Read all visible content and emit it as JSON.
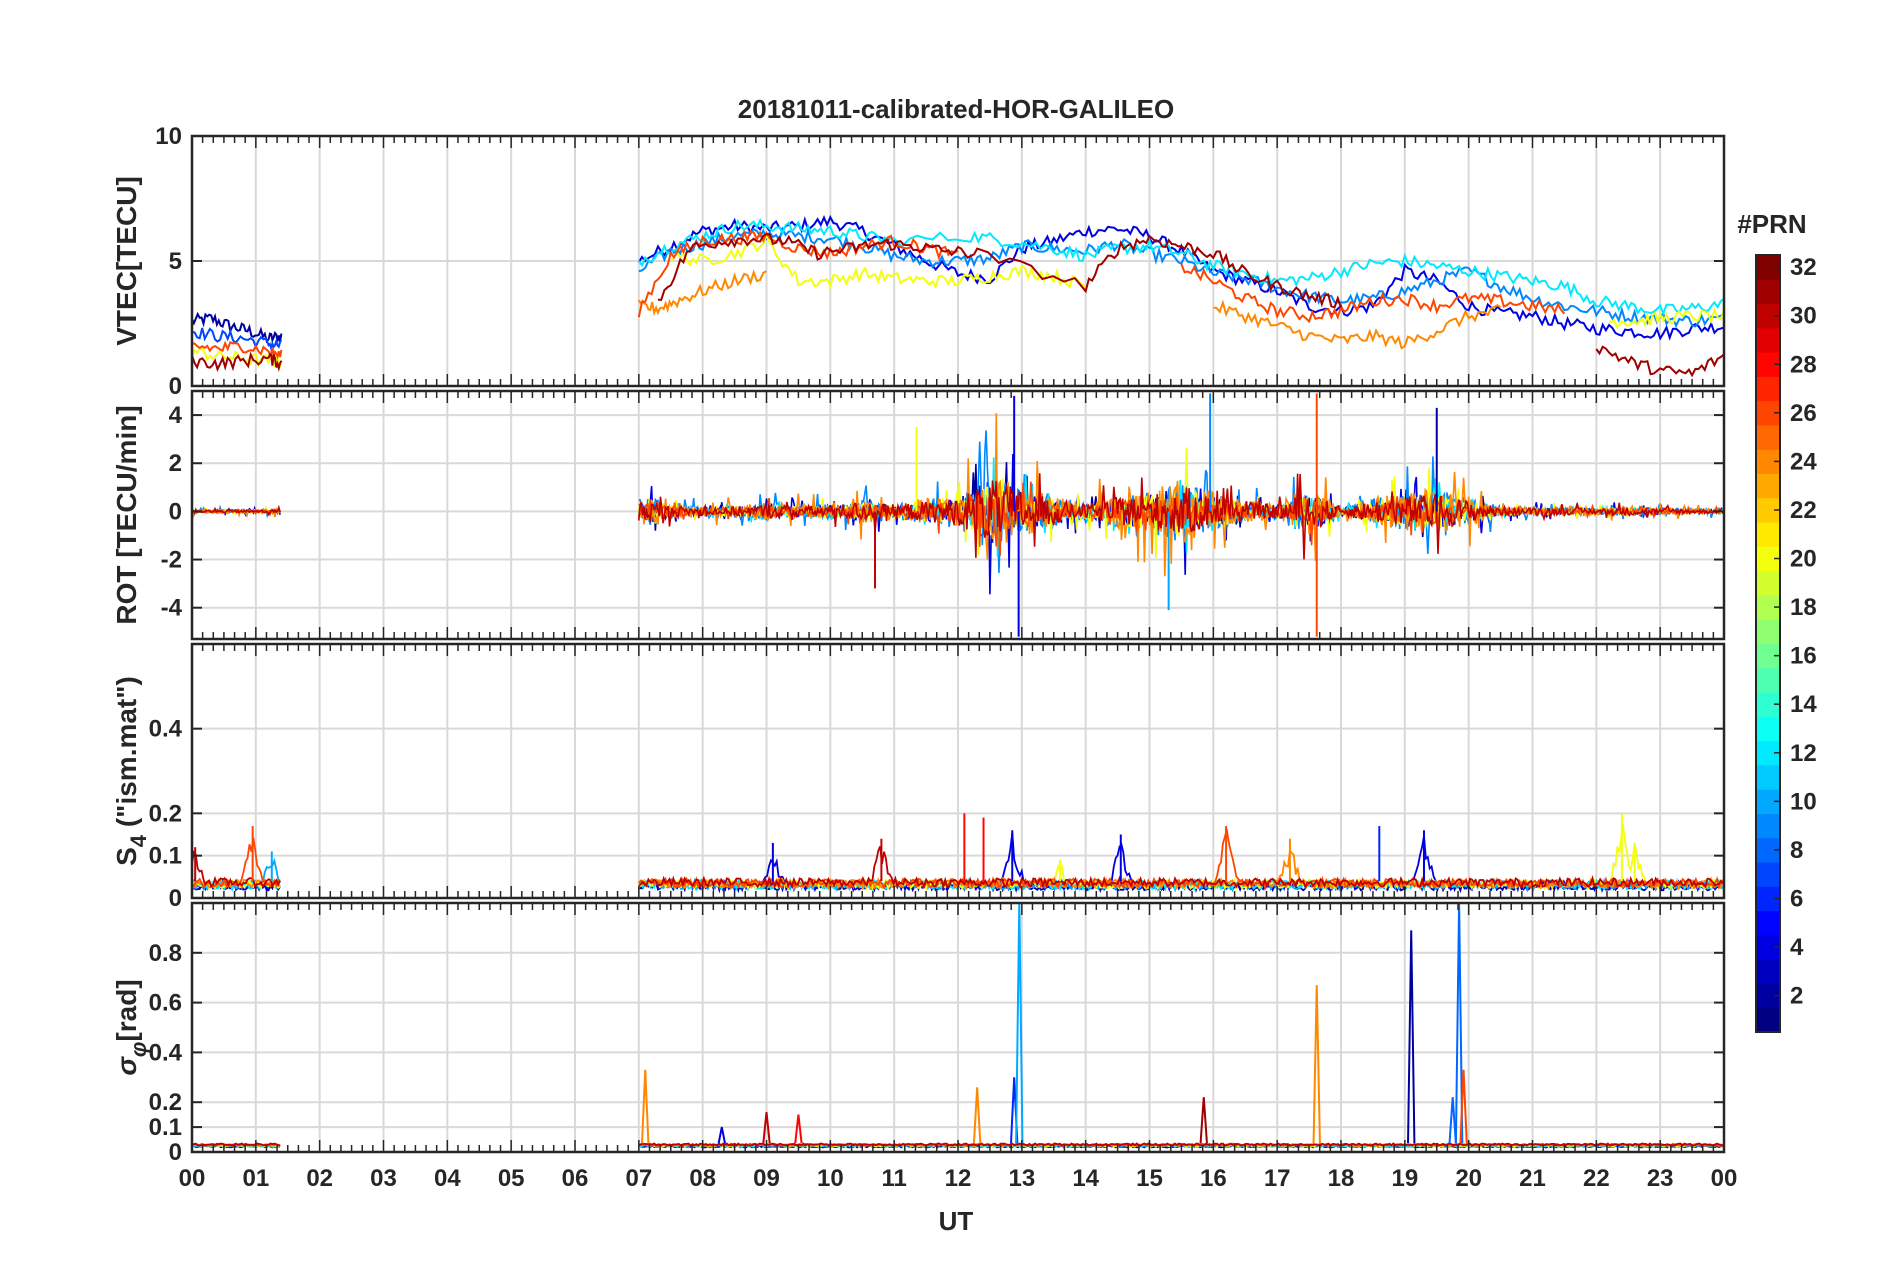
{
  "chart_data": {
    "type": "line",
    "title": "20181011-calibrated-HOR-GALILEO",
    "xlabel": "UT",
    "x_tick_labels": [
      "00",
      "01",
      "02",
      "03",
      "04",
      "05",
      "06",
      "07",
      "08",
      "09",
      "10",
      "11",
      "12",
      "13",
      "14",
      "15",
      "16",
      "17",
      "18",
      "19",
      "20",
      "21",
      "22",
      "23",
      "00"
    ],
    "xlim": [
      0,
      24
    ],
    "grid": true,
    "colorbar": {
      "label": "#PRN",
      "range": [
        1,
        32
      ],
      "tick_labels": [
        "2",
        "4",
        "6",
        "8",
        "10",
        "12",
        "14",
        "16",
        "18",
        "20",
        "22",
        "24",
        "26",
        "28",
        "30",
        "32"
      ],
      "colormap": "jet"
    },
    "panels": [
      {
        "id": "vtec",
        "ylabel": "VTEC[TECU]",
        "ylim": [
          0,
          10
        ],
        "ytick_labels": [
          "0",
          "5",
          "10"
        ],
        "ytick_values": [
          0,
          5,
          10
        ],
        "note": "approximate per-satellite traces digitized from the figure",
        "series": [
          {
            "prn": 2,
            "x": [
              0.0,
              0.3,
              0.6,
              0.9,
              1.2,
              1.4
            ],
            "y": [
              2.6,
              2.7,
              2.4,
              2.2,
              1.9,
              2.0
            ]
          },
          {
            "prn": 4,
            "x": [
              7.0,
              7.5,
              8.0,
              8.5,
              9.0,
              9.5,
              10.0,
              10.5,
              11.0,
              11.5,
              12.0,
              12.5,
              13.0,
              13.5,
              14.0,
              14.5,
              15.0,
              15.5,
              16.0,
              16.5,
              17.0,
              17.5,
              18.0,
              18.5,
              19.0,
              19.5,
              20.0,
              20.5,
              21.0,
              21.5,
              22.0,
              22.5,
              23.0,
              23.5,
              24.0
            ],
            "y": [
              5.0,
              5.6,
              6.2,
              6.4,
              6.3,
              6.4,
              6.6,
              6.2,
              5.6,
              5.0,
              4.5,
              4.3,
              5.5,
              5.8,
              6.2,
              6.3,
              6.0,
              5.4,
              4.6,
              4.2,
              3.8,
              3.2,
              3.0,
              3.2,
              4.6,
              4.2,
              3.2,
              2.9,
              2.8,
              2.5,
              2.3,
              2.2,
              2.1,
              2.3,
              2.4
            ]
          },
          {
            "prn": 7,
            "x": [
              0.0,
              0.4,
              0.8,
              1.2,
              1.4
            ],
            "y": [
              2.2,
              2.0,
              1.9,
              1.7,
              1.6
            ]
          },
          {
            "prn": 9,
            "x": [
              7.0,
              7.5,
              8.0,
              8.5,
              9.0,
              9.5,
              10.0,
              10.5,
              11.0,
              11.5,
              12.0,
              12.5,
              13.0,
              13.5,
              14.0,
              14.5,
              15.0,
              15.5,
              16.0,
              16.5,
              17.0,
              17.5,
              18.0,
              18.5,
              19.0,
              19.5,
              20.0,
              20.5,
              21.0,
              21.5,
              22.0,
              22.5,
              23.0,
              23.5,
              24.0
            ],
            "y": [
              4.6,
              5.4,
              5.7,
              6.0,
              6.1,
              6.0,
              5.9,
              5.6,
              5.2,
              5.0,
              5.0,
              5.1,
              5.6,
              5.5,
              5.4,
              5.7,
              5.3,
              5.0,
              4.5,
              4.3,
              3.9,
              3.6,
              3.4,
              3.5,
              3.8,
              4.2,
              4.6,
              4.0,
              3.5,
              3.2,
              3.0,
              2.8,
              2.7,
              2.6,
              2.7
            ]
          },
          {
            "prn": 12,
            "x": [
              7.0,
              7.5,
              8.0,
              8.5,
              9.0,
              9.5,
              10.0,
              10.5,
              11.0,
              12.2,
              12.8,
              13.5,
              14.0,
              14.5,
              15.0,
              15.5,
              16.0,
              16.5,
              17.0,
              17.5,
              18.0,
              18.5,
              19.0,
              19.5,
              20.0,
              20.5,
              21.0,
              21.5,
              22.0,
              22.5,
              23.0,
              23.5,
              24.0
            ],
            "y": [
              5.0,
              5.6,
              6.0,
              6.4,
              6.4,
              6.3,
              6.2,
              6.0,
              5.8,
              6.0,
              5.8,
              5.5,
              5.2,
              5.5,
              5.6,
              5.3,
              4.8,
              4.5,
              4.2,
              4.3,
              4.6,
              4.9,
              5.0,
              4.8,
              4.6,
              4.4,
              4.2,
              4.0,
              3.4,
              3.2,
              3.0,
              3.1,
              3.3
            ]
          },
          {
            "prn": 20,
            "x": [
              0.0,
              0.4,
              0.8,
              1.2,
              1.4,
              7.5,
              8.0,
              8.5,
              9.0,
              9.5,
              10.0,
              10.5,
              11.0,
              11.5,
              12.0,
              12.5,
              13.0,
              13.5,
              14.0,
              22.2,
              22.6,
              23.0,
              23.5,
              24.0
            ],
            "y": [
              1.4,
              1.2,
              1.1,
              1.0,
              1.0,
              5.2,
              5.0,
              5.3,
              5.8,
              4.2,
              4.2,
              4.5,
              4.3,
              4.2,
              4.2,
              4.4,
              4.6,
              4.4,
              4.0,
              2.6,
              2.6,
              2.7,
              2.8,
              2.8
            ]
          },
          {
            "prn": 24,
            "x": [
              7.0,
              7.3,
              7.6,
              8.0,
              8.5,
              9.0,
              16.0,
              16.5,
              17.0,
              17.5,
              18.0,
              18.5,
              19.0,
              19.5,
              20.0,
              20.5
            ],
            "y": [
              3.2,
              3.1,
              3.4,
              3.8,
              4.2,
              4.5,
              3.2,
              2.8,
              2.4,
              2.0,
              1.8,
              2.0,
              1.7,
              2.2,
              2.8,
              3.0
            ]
          },
          {
            "prn": 26,
            "x": [
              0.0,
              0.4,
              0.8,
              1.2,
              1.4,
              7.0,
              7.5,
              8.0,
              8.5,
              9.0,
              9.5,
              10.0,
              10.5,
              11.0,
              11.5,
              12.0,
              15.5,
              16.0,
              16.5,
              17.0,
              17.5,
              18.0,
              18.5,
              19.0,
              19.5,
              20.0,
              20.5,
              21.0,
              21.5
            ],
            "y": [
              1.6,
              1.5,
              1.6,
              1.4,
              1.2,
              3.0,
              5.2,
              5.8,
              5.9,
              6.0,
              5.5,
              5.3,
              5.6,
              5.8,
              5.5,
              5.2,
              4.8,
              4.2,
              3.5,
              3.0,
              2.8,
              3.0,
              3.4,
              3.5,
              3.2,
              3.5,
              3.4,
              3.2,
              3.0
            ]
          },
          {
            "prn": 31,
            "x": [
              0.0,
              0.4,
              0.8,
              1.2,
              1.4,
              7.3,
              7.8,
              8.3,
              8.8,
              9.3,
              9.8,
              10.3,
              10.8,
              11.3,
              11.8,
              12.3,
              14.0,
              14.5,
              15.0,
              15.5,
              16.0,
              16.5,
              17.0,
              17.5,
              18.0,
              22.0,
              22.5,
              23.0,
              23.5,
              24.0
            ],
            "y": [
              1.0,
              0.9,
              1.0,
              1.1,
              0.9,
              3.4,
              5.5,
              5.8,
              5.9,
              5.8,
              5.3,
              5.5,
              5.7,
              5.6,
              5.4,
              5.3,
              4.0,
              5.5,
              5.9,
              5.6,
              5.3,
              4.5,
              4.0,
              3.6,
              3.3,
              1.6,
              1.0,
              0.6,
              0.5,
              1.2
            ]
          }
        ]
      },
      {
        "id": "rot",
        "ylabel": "ROT [TECU/min]",
        "ylim": [
          -5.3,
          5.0
        ],
        "ytick_labels": [
          "-4",
          "-2",
          "0",
          "2",
          "4"
        ],
        "ytick_values": [
          -4,
          -2,
          0,
          2,
          4
        ],
        "note": "approximate envelope of fluctuations per hour (active intervals)",
        "active_ranges": [
          [
            0.0,
            1.4
          ],
          [
            7.0,
            24.0
          ]
        ],
        "envelope": {
          "hours": [
            0.5,
            1.0,
            7.2,
            7.5,
            8.0,
            8.5,
            9.0,
            9.5,
            10.0,
            10.5,
            11.0,
            11.5,
            12.0,
            12.5,
            13.0,
            13.5,
            14.0,
            14.5,
            15.0,
            15.5,
            16.0,
            16.5,
            17.0,
            17.5,
            18.0,
            18.5,
            19.0,
            19.5,
            20.0,
            20.5,
            21.0,
            21.5,
            22.0,
            22.5,
            23.0,
            23.5
          ],
          "amplitude": [
            0.2,
            0.2,
            1.6,
            0.8,
            0.5,
            0.7,
            1.0,
            0.8,
            0.9,
            1.4,
            1.0,
            1.5,
            2.0,
            4.8,
            3.0,
            1.8,
            1.0,
            2.0,
            2.4,
            3.8,
            2.2,
            1.2,
            1.0,
            3.0,
            0.6,
            1.6,
            2.2,
            2.6,
            1.6,
            0.6,
            0.5,
            0.5,
            0.4,
            0.6,
            0.4,
            0.3
          ]
        },
        "spikes": [
          {
            "x": 12.88,
            "y": 4.8,
            "prn": 4
          },
          {
            "x": 12.95,
            "y": -5.2,
            "prn": 4
          },
          {
            "x": 11.35,
            "y": 3.5,
            "prn": 20
          },
          {
            "x": 15.95,
            "y": 4.9,
            "prn": 9
          },
          {
            "x": 17.62,
            "y": 4.9,
            "prn": 26
          },
          {
            "x": 17.62,
            "y": -5.2,
            "prn": 26
          },
          {
            "x": 19.5,
            "y": 4.3,
            "prn": 2
          },
          {
            "x": 15.3,
            "y": -4.1,
            "prn": 10
          },
          {
            "x": 10.7,
            "y": -3.2,
            "prn": 30
          }
        ]
      },
      {
        "id": "s4",
        "ylabel": "S4 (\"ism.mat\")",
        "ylabel_main": "S",
        "ylabel_sub": "4",
        "ylabel_rest": " (\"ism.mat\")",
        "ylim": [
          0,
          0.6
        ],
        "ytick_labels": [
          "0",
          "0.1",
          "0.2",
          "0.4"
        ],
        "ytick_values": [
          0,
          0.1,
          0.2,
          0.4
        ],
        "note": "approximate baseline and bursts",
        "baseline": 0.04,
        "active_ranges": [
          [
            0.0,
            1.4
          ],
          [
            7.0,
            24.0
          ]
        ],
        "bursts": [
          {
            "x": 0.05,
            "y": 0.12,
            "prn": 30
          },
          {
            "x": 0.95,
            "y": 0.17,
            "prn": 26
          },
          {
            "x": 1.25,
            "y": 0.11,
            "prn": 10
          },
          {
            "x": 9.1,
            "y": 0.13,
            "prn": 4
          },
          {
            "x": 10.8,
            "y": 0.14,
            "prn": 30
          },
          {
            "x": 12.1,
            "y": 0.2,
            "prn": 28
          },
          {
            "x": 12.4,
            "y": 0.19,
            "prn": 28
          },
          {
            "x": 12.85,
            "y": 0.16,
            "prn": 4
          },
          {
            "x": 13.6,
            "y": 0.09,
            "prn": 20
          },
          {
            "x": 14.55,
            "y": 0.15,
            "prn": 4
          },
          {
            "x": 16.2,
            "y": 0.17,
            "prn": 26
          },
          {
            "x": 17.2,
            "y": 0.14,
            "prn": 24
          },
          {
            "x": 18.6,
            "y": 0.17,
            "prn": 6
          },
          {
            "x": 19.3,
            "y": 0.16,
            "prn": 4
          },
          {
            "x": 22.4,
            "y": 0.2,
            "prn": 20
          },
          {
            "x": 22.6,
            "y": 0.13,
            "prn": 20
          }
        ]
      },
      {
        "id": "sigma_phi",
        "ylabel": "σφ[rad]",
        "ylabel_main": "σ",
        "ylabel_sub": "φ",
        "ylabel_rest": "[rad]",
        "ylim": [
          0,
          1.0
        ],
        "ytick_labels": [
          "0",
          "0.1",
          "0.2",
          "0.4",
          "0.6",
          "0.8"
        ],
        "ytick_values": [
          0,
          0.1,
          0.2,
          0.4,
          0.6,
          0.8
        ],
        "note": "approximate baseline and spikes",
        "baseline": 0.035,
        "active_ranges": [
          [
            0.0,
            1.4
          ],
          [
            7.0,
            24.0
          ]
        ],
        "spikes": [
          {
            "x": 7.1,
            "y": 0.33,
            "prn": 24
          },
          {
            "x": 8.3,
            "y": 0.1,
            "prn": 4
          },
          {
            "x": 9.0,
            "y": 0.16,
            "prn": 30
          },
          {
            "x": 9.5,
            "y": 0.15,
            "prn": 28
          },
          {
            "x": 12.3,
            "y": 0.26,
            "prn": 24
          },
          {
            "x": 12.88,
            "y": 0.3,
            "prn": 6
          },
          {
            "x": 12.96,
            "y": 1.0,
            "prn": 10
          },
          {
            "x": 15.85,
            "y": 0.22,
            "prn": 31
          },
          {
            "x": 17.62,
            "y": 0.67,
            "prn": 24
          },
          {
            "x": 19.1,
            "y": 0.89,
            "prn": 2
          },
          {
            "x": 19.75,
            "y": 0.22,
            "prn": 8
          },
          {
            "x": 19.85,
            "y": 1.0,
            "prn": 8
          },
          {
            "x": 19.92,
            "y": 0.33,
            "prn": 26
          }
        ]
      }
    ]
  }
}
